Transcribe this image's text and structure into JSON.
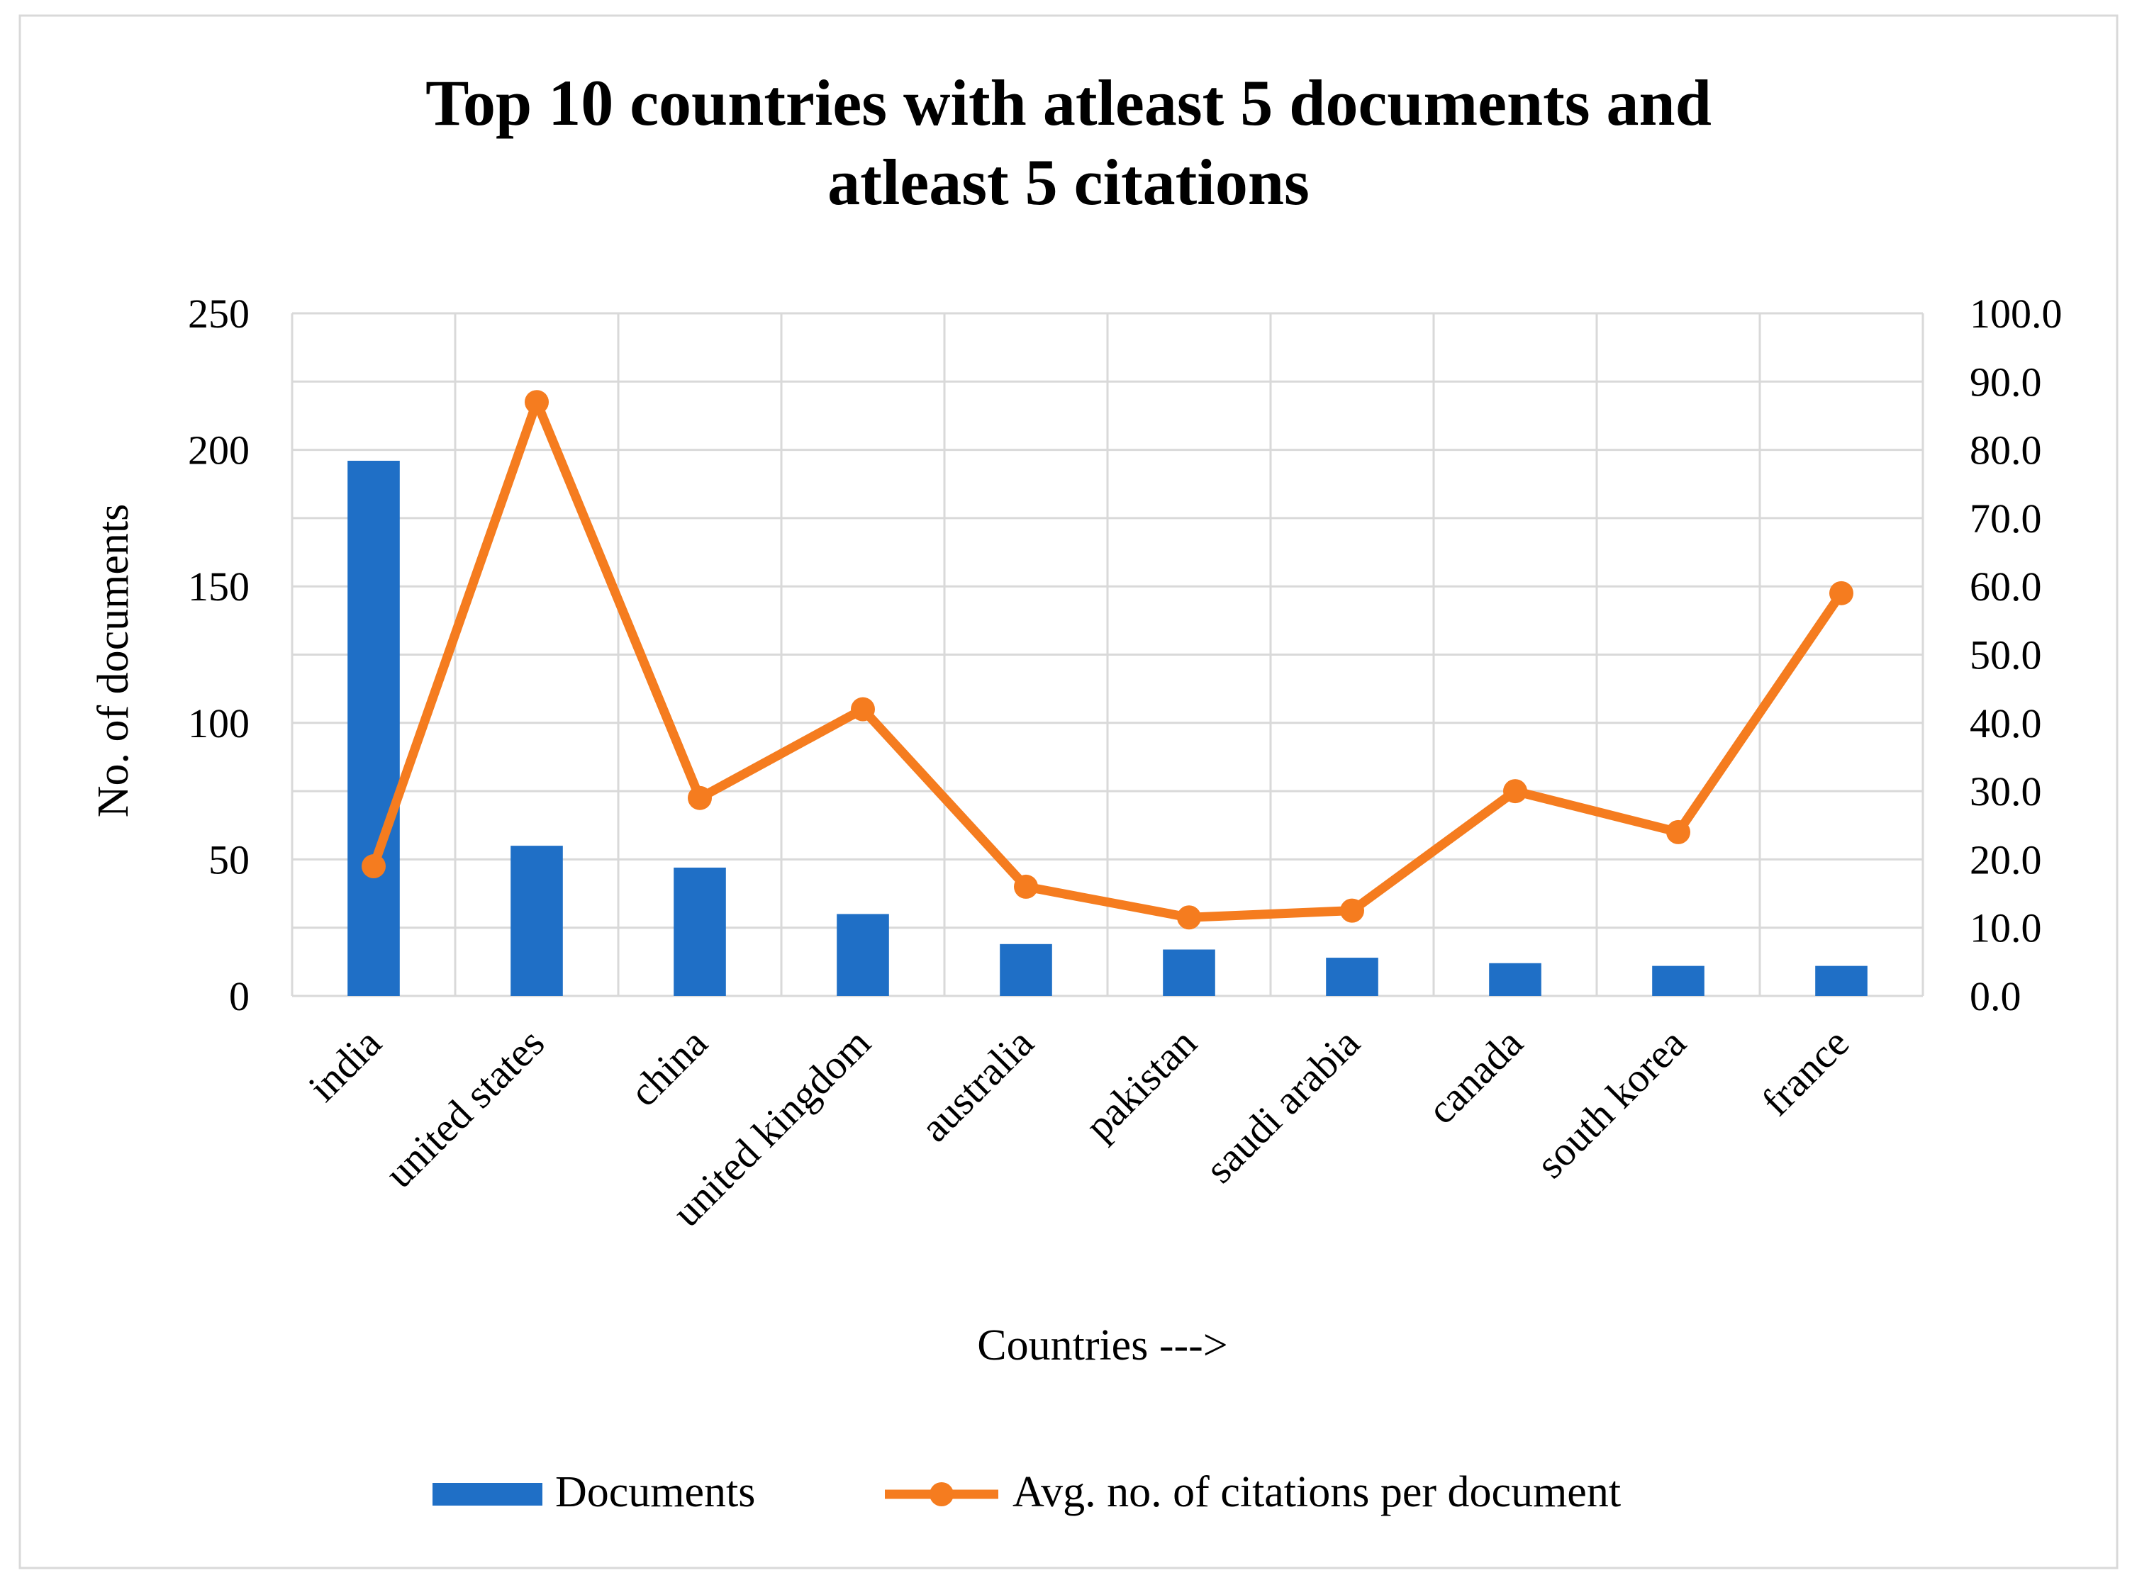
{
  "chart_data": {
    "type": "bar",
    "title_lines": [
      "Top 10 countries with atleast 5 documents and",
      "atleast 5 citations"
    ],
    "xlabel": "Countries --->",
    "ylabel": "No. of documents",
    "categories": [
      "india",
      "united states",
      "china",
      "united kingdom",
      "australia",
      "pakistan",
      "saudi arabia",
      "canada",
      "south korea",
      "france"
    ],
    "series": [
      {
        "name": "Documents",
        "type": "bar",
        "axis": "left",
        "color": "#1F6FC6",
        "values": [
          196,
          55,
          47,
          30,
          19,
          17,
          14,
          12,
          11,
          11
        ]
      },
      {
        "name": "Avg. no. of citations per document",
        "type": "line",
        "axis": "right",
        "color": "#F57C1F",
        "values": [
          19.0,
          87.0,
          29.0,
          42.0,
          16.0,
          11.5,
          12.5,
          30.0,
          24.0,
          59.0
        ]
      }
    ],
    "y_left": {
      "min": 0,
      "max": 250,
      "ticks": [
        "0",
        "50",
        "100",
        "150",
        "200",
        "250"
      ]
    },
    "y_right": {
      "min": 0,
      "max": 100,
      "ticks": [
        "0.0",
        "10.0",
        "20.0",
        "30.0",
        "40.0",
        "50.0",
        "60.0",
        "70.0",
        "80.0",
        "90.0",
        "100.0"
      ]
    },
    "grid": true,
    "legend_position": "bottom"
  }
}
